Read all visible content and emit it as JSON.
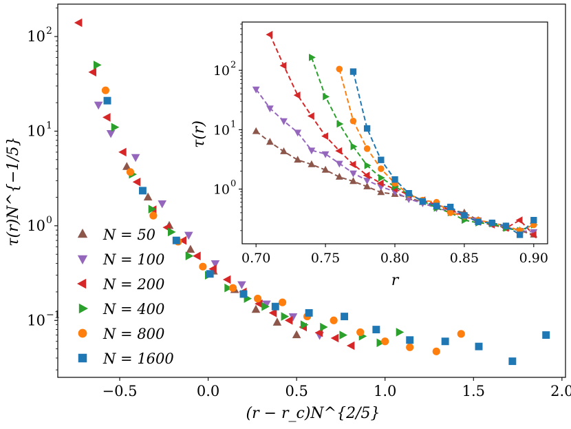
{
  "colors": {
    "N50": "#8c564b",
    "N100": "#9467bd",
    "N200": "#d62728",
    "N400": "#2ca02c",
    "N800": "#ff7f0e",
    "N1600": "#1f77b4"
  },
  "chart_data": [
    {
      "id": "main",
      "type": "scatter",
      "title": "",
      "xlabel": "(r − r_c)N^{2/5}",
      "ylabel": "τ(r)N^{−1/5}",
      "yscale": "log",
      "xlim": [
        -0.85,
        2.02
      ],
      "ylim": [
        0.025,
        220
      ],
      "x_ticks": [
        -0.5,
        0.0,
        0.5,
        1.0,
        1.5,
        2.0
      ],
      "x_tick_labels": [
        "−0.5",
        "0.0",
        "0.5",
        "1.0",
        "1.5",
        "2.0"
      ],
      "y_ticks": [
        0.1,
        1,
        10,
        100
      ],
      "y_tick_labels": [
        "10",
        "10",
        "10",
        "10"
      ],
      "y_tick_exponents": [
        "−1",
        "0",
        "1",
        "2"
      ],
      "legend_position": "lower-left",
      "series": [
        {
          "name": "N = 50",
          "legend_label": "N = 50",
          "color_key": "N50",
          "marker": "triangle-up",
          "x": [
            -0.46,
            -0.34,
            -0.22,
            -0.1,
            0.03,
            0.15,
            0.27,
            0.39,
            0.5
          ],
          "y": [
            4.2,
            2.0,
            1.0,
            0.56,
            0.33,
            0.21,
            0.13,
            0.095,
            0.07
          ]
        },
        {
          "name": "N = 100",
          "legend_label": "N = 100",
          "color_key": "N100",
          "marker": "triangle-down",
          "x": [
            -0.62,
            -0.55,
            -0.41,
            -0.26,
            -0.11,
            0.04,
            0.19,
            0.33,
            0.48,
            0.63
          ],
          "y": [
            19,
            9.5,
            5.3,
            1.72,
            0.8,
            0.4,
            0.24,
            0.15,
            0.11,
            0.07
          ]
        },
        {
          "name": "N = 200",
          "legend_label": "N = 200",
          "color_key": "N200",
          "marker": "triangle-left",
          "x": [
            -0.73,
            -0.65,
            -0.57,
            -0.48,
            -0.4,
            -0.31,
            -0.23,
            -0.14,
            -0.06,
            0.03,
            0.11,
            0.2,
            0.29,
            0.37,
            0.46,
            0.54,
            0.63,
            0.72,
            0.81
          ],
          "y": [
            140,
            42,
            14,
            6,
            2.9,
            1.48,
            0.96,
            0.7,
            0.48,
            0.35,
            0.27,
            0.2,
            0.15,
            0.12,
            0.1,
            0.085,
            0.074,
            0.065,
            0.054
          ]
        },
        {
          "name": "N = 400",
          "legend_label": "N = 400",
          "color_key": "N400",
          "marker": "triangle-right",
          "x": [
            -0.63,
            -0.53,
            -0.43,
            -0.32,
            -0.21,
            -0.11,
            0.0,
            0.11,
            0.22,
            0.32,
            0.43,
            0.54,
            0.65,
            0.76,
            0.87,
            0.97,
            1.08
          ],
          "y": [
            50,
            11,
            3.5,
            1.5,
            0.86,
            0.48,
            0.3,
            0.22,
            0.17,
            0.14,
            0.11,
            0.09,
            0.085,
            0.07,
            0.068,
            0.058,
            0.075
          ]
        },
        {
          "name": "N = 800",
          "legend_label": "N = 800",
          "color_key": "N800",
          "marker": "circle",
          "x": [
            -0.58,
            -0.44,
            -0.31,
            -0.17,
            -0.03,
            0.14,
            0.28,
            0.42,
            0.56,
            0.71,
            0.86,
            1.0,
            1.14,
            1.29,
            1.43
          ],
          "y": [
            27,
            3.7,
            1.28,
            0.68,
            0.37,
            0.22,
            0.17,
            0.155,
            0.11,
            0.1,
            0.075,
            0.06,
            0.052,
            0.047,
            0.072
          ]
        },
        {
          "name": "N = 1600",
          "legend_label": "N = 1600",
          "color_key": "N1600",
          "marker": "square",
          "x": [
            -0.57,
            -0.37,
            -0.18,
            0.01,
            0.2,
            0.38,
            0.57,
            0.77,
            0.95,
            1.14,
            1.34,
            1.53,
            1.72,
            1.91
          ],
          "y": [
            21,
            2.35,
            0.7,
            0.31,
            0.19,
            0.14,
            0.12,
            0.11,
            0.08,
            0.062,
            0.06,
            0.053,
            0.037,
            0.07
          ]
        }
      ]
    },
    {
      "id": "inset",
      "type": "line",
      "title": "",
      "xlabel": "r",
      "ylabel": "τ(r)",
      "yscale": "log",
      "xlim": [
        0.69,
        0.91
      ],
      "ylim": [
        0.12,
        650
      ],
      "x_ticks": [
        0.7,
        0.75,
        0.8,
        0.85,
        0.9
      ],
      "x_tick_labels": [
        "0.70",
        "0.75",
        "0.80",
        "0.85",
        "0.90"
      ],
      "y_ticks": [
        1,
        10,
        100
      ],
      "y_tick_labels": [
        "10",
        "10",
        "10"
      ],
      "y_tick_exponents": [
        "0",
        "1",
        "2"
      ],
      "line_style": "dashed",
      "series": [
        {
          "name": "N = 50",
          "color_key": "N50",
          "marker": "triangle-up",
          "x": [
            0.7,
            0.71,
            0.72,
            0.73,
            0.74,
            0.75,
            0.76,
            0.77,
            0.78,
            0.79,
            0.8,
            0.81,
            0.82,
            0.83,
            0.84,
            0.85,
            0.86,
            0.87,
            0.88,
            0.89,
            0.9
          ],
          "y": [
            9.4,
            6.2,
            4.3,
            3.1,
            2.6,
            2.1,
            1.6,
            1.35,
            1.1,
            0.88,
            0.82,
            0.72,
            0.6,
            0.5,
            0.45,
            0.4,
            0.3,
            0.26,
            0.22,
            0.2,
            0.17
          ]
        },
        {
          "name": "N = 100",
          "color_key": "N100",
          "marker": "triangle-down",
          "x": [
            0.7,
            0.71,
            0.72,
            0.73,
            0.74,
            0.75,
            0.76,
            0.77,
            0.78,
            0.79,
            0.8,
            0.81,
            0.82,
            0.83,
            0.84,
            0.85,
            0.86,
            0.87,
            0.88,
            0.89,
            0.9
          ],
          "y": [
            48,
            23,
            14,
            9,
            4.5,
            3.9,
            2.7,
            1.85,
            1.4,
            1.1,
            0.9,
            0.68,
            0.58,
            0.48,
            0.42,
            0.36,
            0.3,
            0.26,
            0.23,
            0.2,
            0.19
          ]
        },
        {
          "name": "N = 200",
          "color_key": "N200",
          "marker": "triangle-left",
          "x": [
            0.71,
            0.72,
            0.73,
            0.74,
            0.75,
            0.76,
            0.77,
            0.78,
            0.79,
            0.8,
            0.81,
            0.82,
            0.83,
            0.84,
            0.85,
            0.86,
            0.87,
            0.88,
            0.89,
            0.9
          ],
          "y": [
            400,
            120,
            38,
            17,
            7.8,
            4.4,
            2.6,
            1.7,
            1.25,
            1.0,
            0.8,
            0.65,
            0.55,
            0.45,
            0.35,
            0.28,
            0.25,
            0.22,
            0.3,
            0.17
          ]
        },
        {
          "name": "N = 400",
          "color_key": "N400",
          "marker": "triangle-right",
          "x": [
            0.74,
            0.75,
            0.76,
            0.77,
            0.78,
            0.79,
            0.8,
            0.81,
            0.82,
            0.83,
            0.84,
            0.85,
            0.86,
            0.87,
            0.88,
            0.89,
            0.9
          ],
          "y": [
            165,
            36,
            12.5,
            5.2,
            2.5,
            1.55,
            1.1,
            0.82,
            0.63,
            0.48,
            0.4,
            0.3,
            0.27,
            0.26,
            0.22,
            0.2,
            0.25
          ]
        },
        {
          "name": "N = 800",
          "color_key": "N800",
          "marker": "circle",
          "x": [
            0.76,
            0.77,
            0.78,
            0.79,
            0.8,
            0.81,
            0.82,
            0.83,
            0.84,
            0.85,
            0.86,
            0.87,
            0.88,
            0.89,
            0.9
          ],
          "y": [
            105,
            14,
            4.8,
            2.2,
            1.25,
            0.82,
            0.65,
            0.6,
            0.4,
            0.35,
            0.3,
            0.27,
            0.24,
            0.2,
            0.25
          ]
        },
        {
          "name": "N = 1600",
          "color_key": "N1600",
          "marker": "square",
          "x": [
            0.77,
            0.78,
            0.79,
            0.8,
            0.81,
            0.82,
            0.83,
            0.84,
            0.85,
            0.86,
            0.87,
            0.88,
            0.89,
            0.9
          ],
          "y": [
            95,
            10.5,
            3.1,
            1.45,
            0.85,
            0.62,
            0.52,
            0.5,
            0.36,
            0.28,
            0.27,
            0.24,
            0.17,
            0.3
          ]
        }
      ]
    }
  ]
}
